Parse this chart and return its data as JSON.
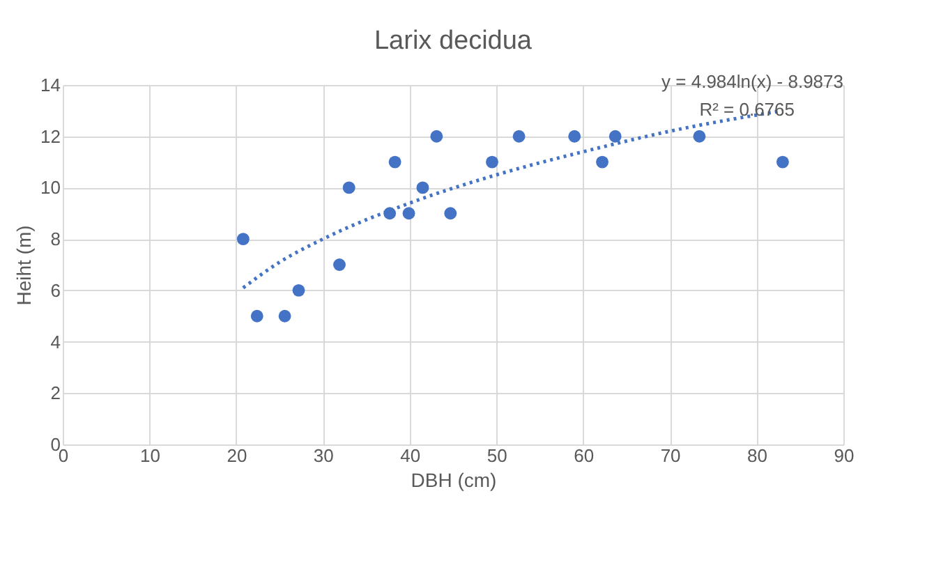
{
  "chart_data": {
    "type": "scatter",
    "title": "Larix decidua",
    "xlabel": "DBH (cm)",
    "ylabel": "Heiht (m)",
    "xlim": [
      0,
      90
    ],
    "xticks": [
      0,
      10,
      20,
      30,
      40,
      50,
      60,
      70,
      80,
      90
    ],
    "ylim": [
      0,
      14
    ],
    "yticks": [
      0,
      2,
      4,
      6,
      8,
      10,
      12,
      14
    ],
    "grid": true,
    "series": [
      {
        "marker": "circle",
        "color": "#4472c4",
        "x": [
          20.8,
          22.4,
          25.6,
          27.2,
          31.9,
          33.0,
          37.7,
          38.3,
          39.9,
          41.5,
          43.1,
          44.7,
          49.5,
          52.6,
          59.0,
          62.2,
          63.7,
          73.4,
          83.0
        ],
        "values": [
          8,
          5,
          5,
          6,
          7,
          10,
          9,
          11,
          9,
          10,
          12,
          9,
          11,
          12,
          12,
          11,
          12,
          12,
          11
        ]
      },
      {
        "type": "line",
        "marker": "none",
        "line_style": "dotted",
        "color": "#4472c4",
        "x": [
          20.8,
          25,
          30,
          40,
          50,
          60,
          70,
          83
        ],
        "values": [
          6.1,
          7.1,
          8.0,
          9.4,
          10.5,
          11.4,
          12.2,
          13.0
        ]
      }
    ],
    "annotations": [
      "y = 4.984ln(x) - 8.9873",
      "R² = 0.6765"
    ]
  }
}
